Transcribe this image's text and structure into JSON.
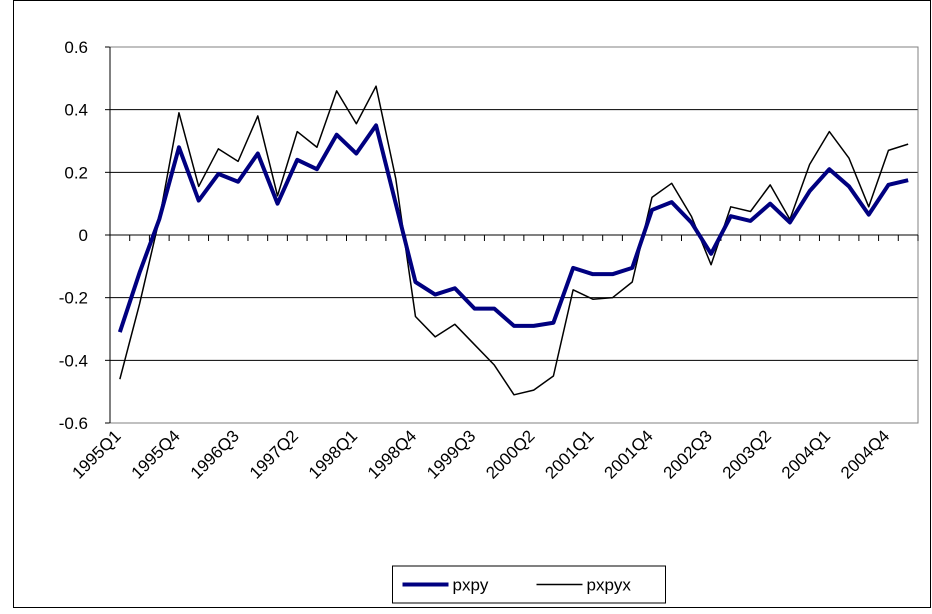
{
  "chart_data": {
    "type": "line",
    "categories": [
      "1995Q1",
      null,
      null,
      "1995Q4",
      null,
      null,
      "1996Q3",
      null,
      null,
      "1997Q2",
      null,
      null,
      "1998Q1",
      null,
      null,
      "1998Q4",
      null,
      null,
      "1999Q3",
      null,
      null,
      "2000Q2",
      null,
      null,
      "2001Q1",
      null,
      null,
      "2001Q4",
      null,
      null,
      "2002Q3",
      null,
      null,
      "2003Q2",
      null,
      null,
      "2004Q1",
      null,
      null,
      "2004Q4",
      null
    ],
    "series": [
      {
        "name": "pxpy",
        "color": "#000080",
        "values": [
          -0.31,
          -0.12,
          0.05,
          0.28,
          0.11,
          0.195,
          0.17,
          0.26,
          0.1,
          0.24,
          0.21,
          0.32,
          0.26,
          0.35,
          0.1,
          -0.15,
          -0.19,
          -0.17,
          -0.235,
          -0.235,
          -0.29,
          -0.29,
          -0.28,
          -0.105,
          -0.125,
          -0.125,
          -0.105,
          0.08,
          0.105,
          0.04,
          -0.06,
          0.06,
          0.045,
          0.1,
          0.04,
          0.14,
          0.21,
          0.155,
          0.065,
          0.16,
          0.175
        ]
      },
      {
        "name": "pxpyx",
        "color": "#000000",
        "values": [
          -0.46,
          -0.22,
          0.05,
          0.39,
          0.155,
          0.275,
          0.235,
          0.38,
          0.125,
          0.33,
          0.28,
          0.46,
          0.355,
          0.475,
          0.18,
          -0.26,
          -0.325,
          -0.285,
          -0.35,
          -0.415,
          -0.51,
          -0.495,
          -0.45,
          -0.175,
          -0.205,
          -0.2,
          -0.15,
          0.12,
          0.165,
          0.06,
          -0.095,
          0.09,
          0.075,
          0.16,
          0.05,
          0.225,
          0.33,
          0.245,
          0.09,
          0.27,
          0.29
        ]
      }
    ],
    "ylim": [
      -0.6,
      0.6
    ],
    "yticks": [
      -0.6,
      -0.4,
      -0.2,
      0,
      0.2,
      0.4,
      0.6
    ],
    "grid": true,
    "legend": "bottom"
  }
}
